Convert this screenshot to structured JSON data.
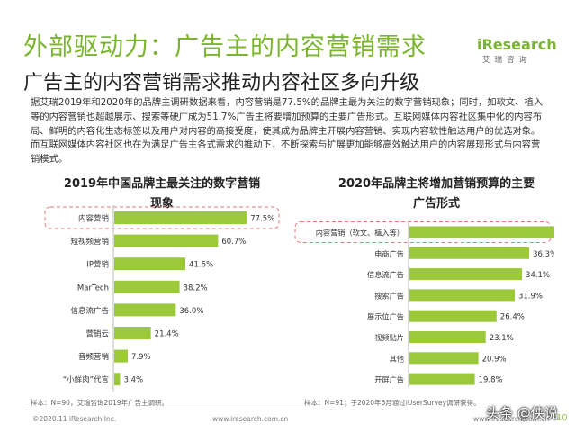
{
  "header": {
    "title": "外部驱动力：广告主的内容营销需求",
    "subtitle": "广告主的内容营销需求推动内容社区多向升级"
  },
  "logo": {
    "brand_i": "i",
    "brand_rest": "Research",
    "tagline": "艾瑞咨询"
  },
  "description": "据艾瑞2019年和2020年的品牌主调研数据来看，内容营销是77.5%的品牌主最为关注的数字营销现象；同时，如软文、植入等的内容营销也超越展示、搜索等硬广成为51.7%广告主将要增加预算的主要广告形式。互联网媒体内容社区集中化的内容布局、鲜明的内容化生态标签以及用户对内容的高接受度，使其成为品牌主开展内容营销、实现内容软性触达用户的优选对象。而互联网媒体内容社区也在为满足广告主各式需求的推动下，不断探索与扩展更加能够高效触达用户的内容展现形式与内容营销模式。",
  "chart_data": [
    {
      "type": "bar",
      "orientation": "horizontal",
      "title_line1": "2019年中国品牌主最关注的数字营销",
      "title_line2": "现象",
      "categories": [
        "内容营销",
        "短视频营销",
        "IP营销",
        "MarTech",
        "信息流广告",
        "营销云",
        "音频营销",
        "“小鲜肉”代言"
      ],
      "values": [
        77.5,
        60.7,
        41.6,
        38.2,
        36.0,
        21.4,
        7.9,
        3.4
      ],
      "labels": [
        "77.5%",
        "60.7%",
        "41.6%",
        "38.2%",
        "36.0%",
        "21.4%",
        "7.9%",
        "3.4%"
      ],
      "xlim": [
        0,
        100
      ],
      "highlight_index": 0,
      "bar_color": "#9bc93a",
      "source": "样本：N=90，艾瑞咨询2019年广告主调研。"
    },
    {
      "type": "bar",
      "orientation": "horizontal",
      "title_line1": "2020年品牌主将增加营销预算的主要",
      "title_line2": "广告形式",
      "categories": [
        "内容营销（软文、植入等）",
        "电商广告",
        "信息流广告",
        "搜索广告",
        "展示位广告",
        "视频贴片",
        "其他",
        "开屏广告"
      ],
      "values": [
        51.7,
        36.3,
        34.1,
        31.9,
        26.4,
        23.1,
        20.9,
        19.8
      ],
      "labels": [
        "51.7%",
        "36.3%",
        "34.1%",
        "31.9%",
        "26.4%",
        "23.1%",
        "20.9%",
        "19.8%"
      ],
      "xlim": [
        0,
        60
      ],
      "highlight_index": 0,
      "bar_color": "#9bc93a",
      "source": "样本：N=91；于2020年6月通过iUserSurvey调研获得。"
    }
  ],
  "footer": {
    "copyright": "©2020.11 iResearch Inc.",
    "website": "www.iresearch.com.cn",
    "page": "10",
    "watermark": "头条 @侠说"
  }
}
